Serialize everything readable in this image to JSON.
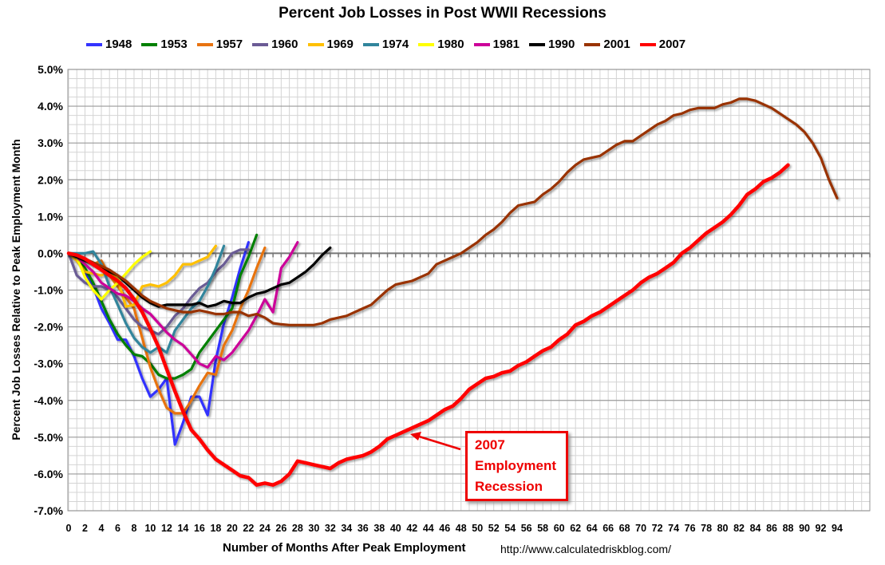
{
  "chart_data": {
    "type": "line",
    "title": "Percent Job Losses in Post WWII Recessions",
    "xlabel": "Number of Months After Peak Employment",
    "ylabel": "Percent Job Losses Relative to Peak Employment Month",
    "source": "http://www.calculatedriskblog.com/",
    "xlim": [
      0,
      97.6
    ],
    "ylim": [
      -7,
      5
    ],
    "xticks": [
      0,
      2,
      4,
      6,
      8,
      10,
      12,
      14,
      16,
      18,
      20,
      22,
      24,
      26,
      28,
      30,
      32,
      34,
      36,
      38,
      40,
      42,
      44,
      46,
      48,
      50,
      52,
      54,
      56,
      58,
      60,
      62,
      64,
      66,
      68,
      70,
      72,
      74,
      76,
      78,
      80,
      82,
      84,
      86,
      88,
      90,
      92,
      94
    ],
    "yticks": [
      "5.0%",
      "4.0%",
      "3.0%",
      "2.0%",
      "1.0%",
      "0.0%",
      "-1.0%",
      "-2.0%",
      "-3.0%",
      "-4.0%",
      "-5.0%",
      "-6.0%",
      "-7.0%"
    ],
    "grid": true,
    "legend_position": "top",
    "annotation": {
      "lines": [
        "2007",
        "Employment",
        "Recession"
      ],
      "points_to_month": 42,
      "color": "#ee0000"
    },
    "series": [
      {
        "name": "1948",
        "color": "#3333ff",
        "values": [
          0,
          -0.2,
          -0.5,
          -0.9,
          -1.5,
          -1.9,
          -2.35,
          -2.35,
          -2.8,
          -3.4,
          -3.9,
          -3.7,
          -3.4,
          -5.2,
          -4.6,
          -3.9,
          -3.9,
          -4.4,
          -2.9,
          -1.9,
          -1.2,
          -0.4,
          0.3
        ]
      },
      {
        "name": "1953",
        "color": "#008000",
        "values": [
          0,
          -0.1,
          -0.4,
          -0.8,
          -1.3,
          -1.8,
          -2.2,
          -2.5,
          -2.75,
          -2.8,
          -3.0,
          -3.3,
          -3.4,
          -3.4,
          -3.3,
          -3.15,
          -2.7,
          -2.4,
          -2.1,
          -1.8,
          -1.5,
          -0.6,
          -0.1,
          0.5
        ]
      },
      {
        "name": "1957",
        "color": "#e87311",
        "values": [
          0,
          -0.1,
          -0.2,
          -0.3,
          -0.2,
          -0.6,
          -0.9,
          -1.2,
          -1.5,
          -2.3,
          -3.1,
          -3.7,
          -4.2,
          -4.35,
          -4.35,
          -4.0,
          -3.6,
          -3.25,
          -3.3,
          -2.5,
          -2.1,
          -1.5,
          -1.0,
          -0.4,
          0.15
        ]
      },
      {
        "name": "1960",
        "color": "#6b5b95",
        "values": [
          0,
          -0.6,
          -0.8,
          -0.9,
          -0.9,
          -1.0,
          -1.2,
          -1.5,
          -1.8,
          -2.0,
          -2.1,
          -2.2,
          -2.0,
          -1.7,
          -1.5,
          -1.2,
          -0.95,
          -0.8,
          -0.5,
          -0.3,
          0.0,
          0.1,
          0.1
        ]
      },
      {
        "name": "1969",
        "color": "#ffc000",
        "values": [
          0,
          -0.2,
          -0.5,
          -0.55,
          -0.6,
          -0.5,
          -0.7,
          -1.45,
          -1.4,
          -0.9,
          -0.85,
          -0.9,
          -0.8,
          -0.6,
          -0.3,
          -0.3,
          -0.2,
          -0.1,
          0.2
        ]
      },
      {
        "name": "1974",
        "color": "#31859c",
        "values": [
          0,
          0,
          0,
          0.05,
          -0.3,
          -0.9,
          -1.4,
          -1.9,
          -2.3,
          -2.55,
          -2.7,
          -2.55,
          -2.7,
          -2.1,
          -1.8,
          -1.5,
          -1.3,
          -0.9,
          -0.4,
          0.2
        ]
      },
      {
        "name": "1980",
        "color": "#ffff00",
        "values": [
          0,
          -0.1,
          -0.65,
          -1.0,
          -1.25,
          -1.0,
          -0.8,
          -0.55,
          -0.3,
          -0.1,
          0.05
        ]
      },
      {
        "name": "1981",
        "color": "#cc0099",
        "values": [
          0,
          -0.1,
          -0.3,
          -0.5,
          -0.8,
          -0.95,
          -1.1,
          -1.15,
          -1.3,
          -1.5,
          -1.65,
          -1.9,
          -2.15,
          -2.35,
          -2.5,
          -2.75,
          -3.0,
          -3.1,
          -2.8,
          -2.9,
          -2.7,
          -2.4,
          -2.1,
          -1.7,
          -1.25,
          -1.6,
          -0.4,
          -0.1,
          0.3
        ]
      },
      {
        "name": "1990",
        "color": "#000000",
        "values": [
          0,
          -0.1,
          -0.2,
          -0.3,
          -0.4,
          -0.5,
          -0.6,
          -0.8,
          -1.0,
          -1.2,
          -1.35,
          -1.45,
          -1.4,
          -1.4,
          -1.4,
          -1.4,
          -1.35,
          -1.45,
          -1.4,
          -1.3,
          -1.35,
          -1.35,
          -1.2,
          -1.1,
          -1.05,
          -0.95,
          -0.85,
          -0.8,
          -0.65,
          -0.5,
          -0.3,
          -0.05,
          0.15
        ]
      },
      {
        "name": "2001",
        "color": "#993300",
        "values": [
          0,
          -0.05,
          -0.15,
          -0.25,
          -0.35,
          -0.45,
          -0.6,
          -0.75,
          -0.95,
          -1.15,
          -1.3,
          -1.4,
          -1.5,
          -1.55,
          -1.6,
          -1.6,
          -1.55,
          -1.6,
          -1.65,
          -1.65,
          -1.6,
          -1.6,
          -1.7,
          -1.65,
          -1.75,
          -1.9,
          -1.93,
          -1.95,
          -1.95,
          -1.95,
          -1.95,
          -1.9,
          -1.8,
          -1.75,
          -1.7,
          -1.6,
          -1.5,
          -1.4,
          -1.2,
          -1.0,
          -0.85,
          -0.8,
          -0.75,
          -0.65,
          -0.55,
          -0.3,
          -0.2,
          -0.1,
          0.0,
          0.15,
          0.3,
          0.5,
          0.65,
          0.85,
          1.1,
          1.3,
          1.35,
          1.4,
          1.6,
          1.75,
          1.95,
          2.2,
          2.4,
          2.55,
          2.6,
          2.65,
          2.8,
          2.95,
          3.05,
          3.05,
          3.2,
          3.35,
          3.5,
          3.6,
          3.75,
          3.8,
          3.9,
          3.95,
          3.95,
          3.95,
          4.05,
          4.1,
          4.2,
          4.2,
          4.15,
          4.05,
          3.95,
          3.8,
          3.65,
          3.5,
          3.3,
          3.0,
          2.6,
          2.0,
          1.5
        ]
      },
      {
        "name": "2007",
        "color": "#ff0000",
        "values": [
          0,
          -0.05,
          -0.15,
          -0.3,
          -0.45,
          -0.6,
          -0.75,
          -0.95,
          -1.25,
          -1.6,
          -2.05,
          -2.55,
          -3.15,
          -3.75,
          -4.3,
          -4.8,
          -5.05,
          -5.35,
          -5.6,
          -5.75,
          -5.9,
          -6.05,
          -6.1,
          -6.3,
          -6.25,
          -6.3,
          -6.2,
          -6.0,
          -5.65,
          -5.7,
          -5.75,
          -5.8,
          -5.85,
          -5.7,
          -5.6,
          -5.55,
          -5.5,
          -5.4,
          -5.25,
          -5.05,
          -4.95,
          -4.85,
          -4.75,
          -4.65,
          -4.55,
          -4.4,
          -4.25,
          -4.15,
          -3.95,
          -3.7,
          -3.55,
          -3.4,
          -3.35,
          -3.25,
          -3.2,
          -3.05,
          -2.95,
          -2.8,
          -2.65,
          -2.55,
          -2.35,
          -2.2,
          -1.95,
          -1.85,
          -1.7,
          -1.6,
          -1.45,
          -1.3,
          -1.15,
          -1.0,
          -0.8,
          -0.65,
          -0.55,
          -0.4,
          -0.25,
          0.0,
          0.15,
          0.35,
          0.55,
          0.7,
          0.85,
          1.05,
          1.3,
          1.6,
          1.75,
          1.95,
          2.05,
          2.2,
          2.4
        ]
      }
    ]
  }
}
